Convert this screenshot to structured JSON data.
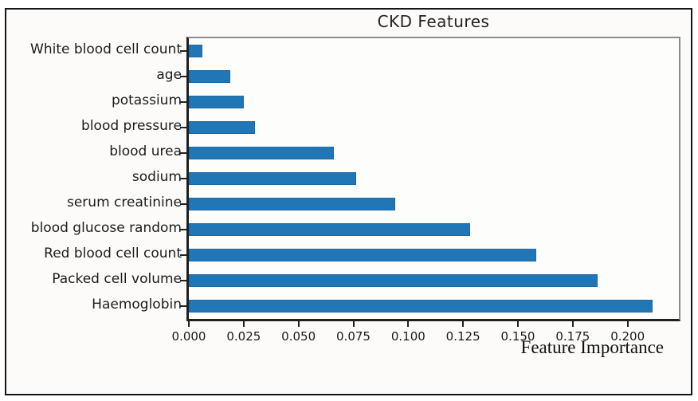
{
  "chart_data": {
    "type": "bar",
    "orientation": "horizontal",
    "title": "CKD Features",
    "xlabel": "Feature Importance",
    "ylabel": "",
    "categories": [
      "White blood cell count",
      "age",
      "potassium",
      "blood pressure",
      "blood urea",
      "sodium",
      "serum creatinine",
      "blood glucose random",
      "Red blood cell count",
      "Packed cell volume",
      "Haemoglobin"
    ],
    "values": [
      0.006,
      0.019,
      0.025,
      0.03,
      0.066,
      0.076,
      0.094,
      0.128,
      0.158,
      0.186,
      0.211
    ],
    "xticks": [
      0.0,
      0.025,
      0.05,
      0.075,
      0.1,
      0.125,
      0.15,
      0.175,
      0.2
    ],
    "xtick_labels": [
      "0.000",
      "0.025",
      "0.050",
      "0.075",
      "0.100",
      "0.125",
      "0.150",
      "0.175",
      "0.200"
    ],
    "xlim": [
      0,
      0.223
    ],
    "grid": false,
    "legend": false,
    "bar_color": "#2176b5",
    "spine_color_dark": "#1f1f1f",
    "spine_color_light": "#8d8d8d",
    "frame_color": "#161616",
    "background_color": "#fcfbfa"
  }
}
